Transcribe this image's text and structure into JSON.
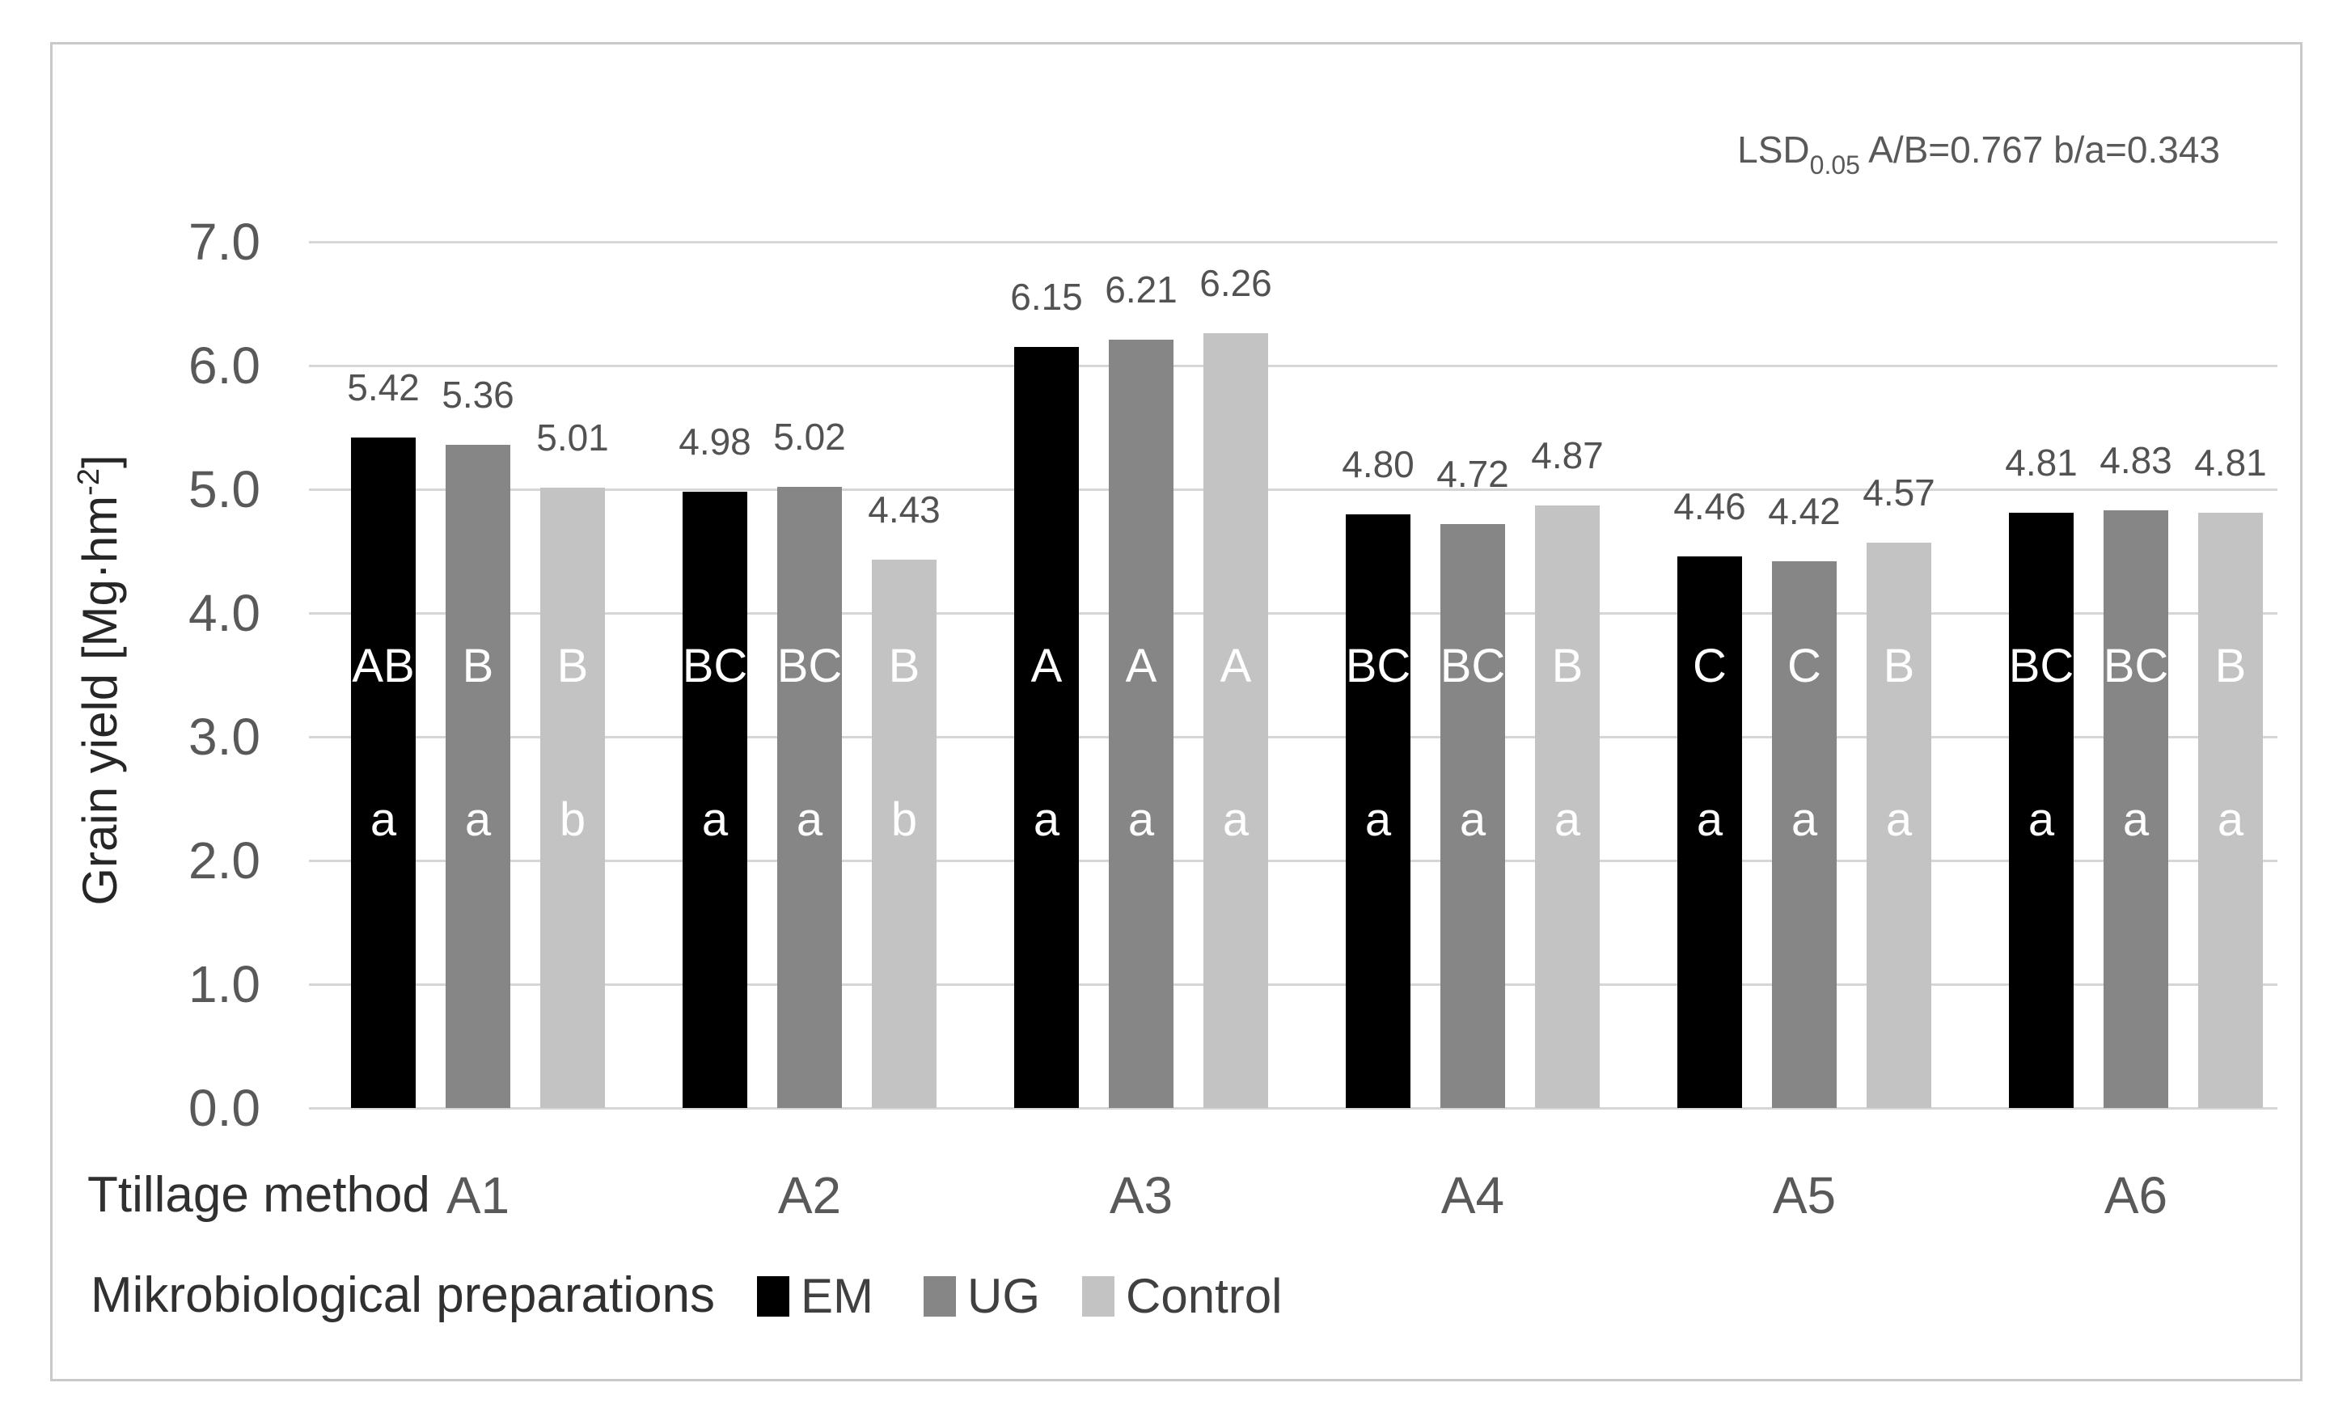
{
  "chart_data": {
    "type": "bar",
    "title": "",
    "categories": [
      "A1",
      "A2",
      "A3",
      "A4",
      "A5",
      "A6"
    ],
    "series": [
      {
        "name": "EM",
        "color": "#000000",
        "values": [
          5.42,
          4.98,
          6.15,
          4.8,
          4.46,
          4.81
        ],
        "value_labels": [
          "5.42",
          "4.98",
          "6.15",
          "4.80",
          "4.46",
          "4.81"
        ],
        "upper_letters": [
          "AB",
          "BC",
          "A",
          "BC",
          "C",
          "BC"
        ],
        "lower_letters": [
          "a",
          "a",
          "a",
          "a",
          "a",
          "a"
        ]
      },
      {
        "name": "UG",
        "color": "#868686",
        "values": [
          5.36,
          5.02,
          6.21,
          4.72,
          4.42,
          4.83
        ],
        "value_labels": [
          "5.36",
          "5.02",
          "6.21",
          "4.72",
          "4.42",
          "4.83"
        ],
        "upper_letters": [
          "B",
          "BC",
          "A",
          "BC",
          "C",
          "BC"
        ],
        "lower_letters": [
          "a",
          "a",
          "a",
          "a",
          "a",
          "a"
        ]
      },
      {
        "name": "Control",
        "color": "#c3c3c3",
        "values": [
          5.01,
          4.43,
          6.26,
          4.87,
          4.57,
          4.81
        ],
        "value_labels": [
          "5.01",
          "4.43",
          "6.26",
          "4.87",
          "4.57",
          "4.81"
        ],
        "upper_letters": [
          "B",
          "B",
          "A",
          "B",
          "B",
          "B"
        ],
        "lower_letters": [
          "b",
          "b",
          "a",
          "a",
          "a",
          "a"
        ]
      }
    ],
    "ylabel_prefix": "Grain yield [Mg·hm",
    "ylabel_sup": "-2",
    "ylabel_suffix": "]",
    "xlabel": "Ttillage method",
    "ylim": [
      0,
      7
    ],
    "yticks": [
      "0.0",
      "1.0",
      "2.0",
      "3.0",
      "4.0",
      "5.0",
      "6.0",
      "7.0"
    ],
    "grid": "horizontal",
    "gridline_color": "#d6d6d6",
    "legend_caption": "Mikrobiological preparations",
    "legend_position": "bottom",
    "annotation_prefix": "LSD",
    "annotation_sub": "0.05",
    "annotation_rest": " A/B=0.767 b/a=0.343"
  }
}
